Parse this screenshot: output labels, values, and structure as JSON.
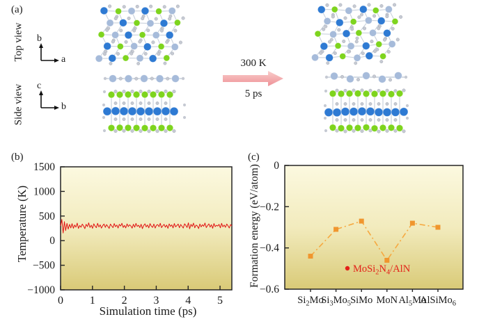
{
  "figure": {
    "panels": {
      "a_label": "(a)",
      "b_label": "(b)",
      "c_label": "(c)"
    }
  },
  "panel_a": {
    "row_labels": [
      "Top view",
      "Side view"
    ],
    "axes_top": {
      "up": "b",
      "right": "a"
    },
    "axes_side": {
      "up": "c",
      "right": "b"
    },
    "arrow": {
      "top_label": "300 K",
      "bottom_label": "5 ps",
      "color_light": "#f9cdcb",
      "color_dark": "#ee9096"
    },
    "atom_colors": {
      "mo": "#2e7ad3",
      "si": "#7ed41e",
      "al": "#a6bbda",
      "n": "#c6cad3",
      "bond": "#b9c4d2"
    }
  },
  "chart_data": [
    {
      "id": "temperature-vs-time",
      "type": "line",
      "xlabel": "Simulation time (ps)",
      "ylabel": "Temperature (K)",
      "xlim": [
        0,
        5.37
      ],
      "ylim": [
        -1000,
        1500
      ],
      "xticks": {
        "values": [
          0,
          1,
          2,
          3,
          4,
          5
        ],
        "labels": [
          "0",
          "1",
          "2",
          "3",
          "4",
          "5"
        ]
      },
      "yticks": {
        "values": [
          1500,
          1000,
          500,
          0,
          -500,
          -1000
        ],
        "labels": [
          "1500",
          "1000",
          "500",
          "0",
          "−500",
          "−1000"
        ]
      },
      "grid": false,
      "line_color": "#e01111",
      "bg_top": "#fcf9e0",
      "bg_mid": "#f2ebbd",
      "bg_bottom": "#d9ca77",
      "mean_temperature_K": 300,
      "values": [
        300,
        430,
        155,
        385,
        205,
        350,
        235,
        330,
        258,
        345,
        252,
        318,
        276,
        356,
        248,
        308,
        272,
        336,
        298,
        244,
        332,
        286,
        362,
        268,
        314,
        250,
        342,
        294,
        264,
        352,
        278,
        322,
        254,
        306,
        338,
        270,
        326,
        290,
        248,
        336,
        300,
        264,
        346,
        284,
        316,
        256,
        330,
        296,
        352,
        268,
        310,
        258,
        340,
        286,
        322,
        298,
        254,
        334,
        274,
        350,
        290,
        314,
        266,
        332,
        244,
        306,
        342,
        280,
        318,
        260,
        346,
        294,
        270,
        336,
        256,
        312,
        326,
        284,
        352,
        264,
        302,
        330,
        274,
        316,
        250,
        341,
        289,
        321,
        259,
        347,
        281,
        307,
        337,
        263,
        327,
        293,
        255,
        342,
        311,
        269,
        361,
        241,
        331,
        287,
        356,
        262,
        317,
        299,
        246,
        338,
        279,
        323,
        291,
        357,
        266,
        306,
        341,
        276,
        324,
        252,
        348,
        286,
        312,
        296,
        331,
        261,
        351,
        282,
        317,
        271,
        337,
        301,
        257,
        326,
        299
      ]
    },
    {
      "id": "formation-energy",
      "type": "line",
      "xlabel": "",
      "ylabel": "Formation energy (eV/atom)",
      "ylim": [
        -0.6,
        0
      ],
      "yticks": {
        "values": [
          0,
          -0.2,
          -0.4,
          -0.6
        ],
        "labels": [
          "0",
          "−0.2",
          "−0.4",
          "−0.6"
        ]
      },
      "categories": [
        "Si_2Mo",
        "Si_3Mo_5",
        "SiMo",
        "MoN",
        "Al_5Mo",
        "AlSiMo_6"
      ],
      "values": [
        -0.44,
        -0.31,
        -0.27,
        -0.46,
        -0.28,
        -0.3
      ],
      "grid": false,
      "marker_color": "#f0962e",
      "line_color": "#f6a83f",
      "line_style": "dash-dot",
      "legend": {
        "label": "MoSi_2N_4/AlN",
        "color": "#e32119",
        "position": "inside-bottom-center"
      },
      "bg_top": "#fcf9e0",
      "bg_mid": "#f2ebbd",
      "bg_bottom": "#d9ca77"
    }
  ]
}
